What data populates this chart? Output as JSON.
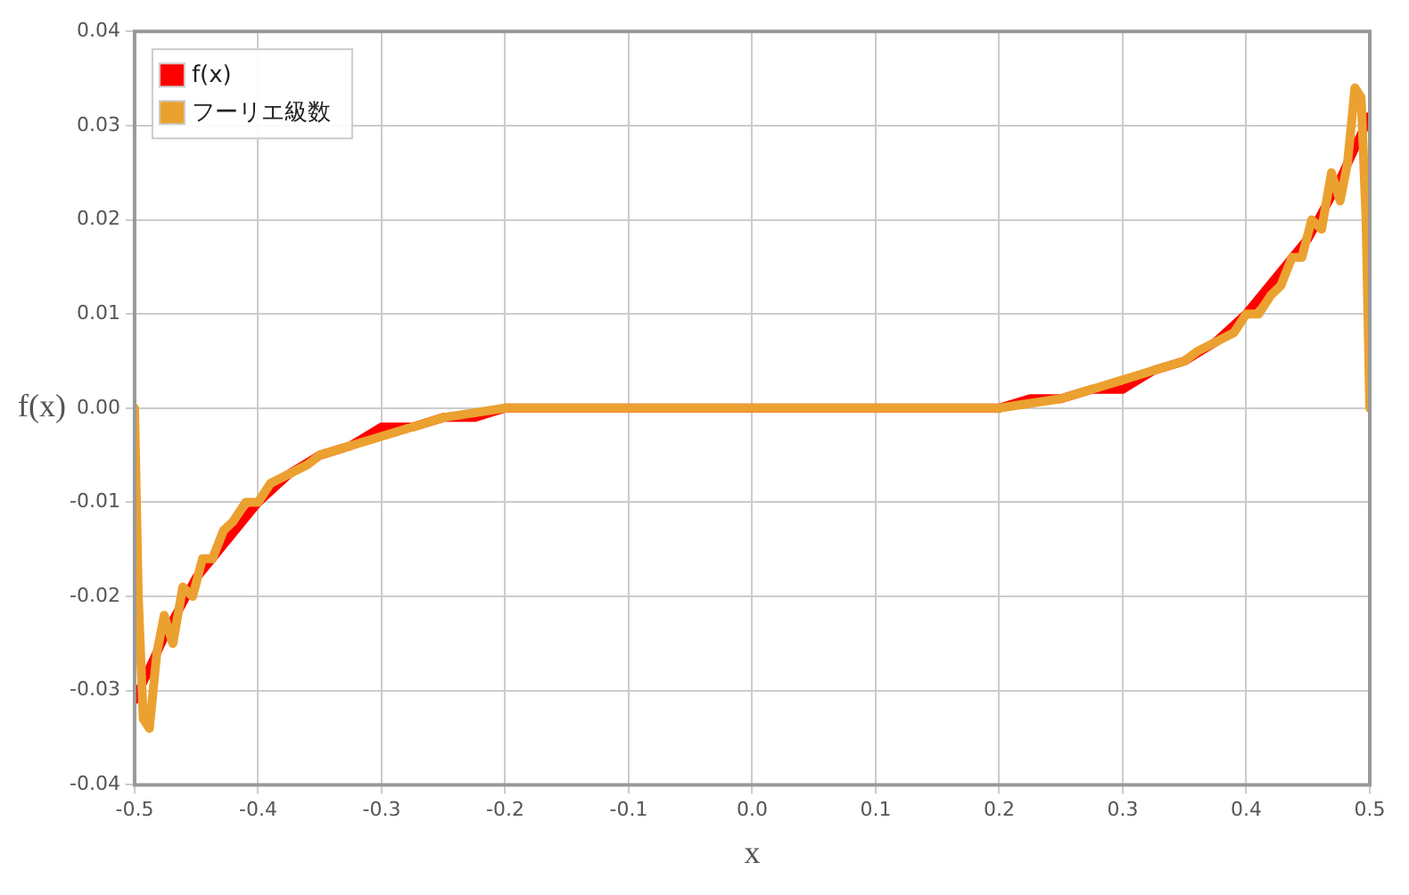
{
  "chart_data": {
    "type": "line",
    "xlabel": "x",
    "ylabel": "f(x)",
    "xlim": [
      -0.5,
      0.5
    ],
    "xticks": [
      {
        "value": -0.5,
        "label": "-0.5"
      },
      {
        "value": -0.4,
        "label": "-0.4"
      },
      {
        "value": -0.3,
        "label": "-0.3"
      },
      {
        "value": -0.2,
        "label": "-0.2"
      },
      {
        "value": -0.1,
        "label": "-0.1"
      },
      {
        "value": 0,
        "label": "0.0"
      },
      {
        "value": 0.1,
        "label": "0.1"
      },
      {
        "value": 0.2,
        "label": "0.2"
      },
      {
        "value": 0.3,
        "label": "0.3"
      },
      {
        "value": 0.4,
        "label": "0.4"
      },
      {
        "value": 0.5,
        "label": "0.5"
      }
    ],
    "ylim": [
      -0.04,
      0.04
    ],
    "yticks": [
      {
        "value": -0.04,
        "label": "-0.04"
      },
      {
        "value": -0.03,
        "label": "-0.03"
      },
      {
        "value": -0.02,
        "label": "-0.02"
      },
      {
        "value": -0.01,
        "label": "-0.01"
      },
      {
        "value": 0,
        "label": "0.00"
      },
      {
        "value": 0.01,
        "label": "0.01"
      },
      {
        "value": 0.02,
        "label": "0.02"
      },
      {
        "value": 0.03,
        "label": "0.03"
      },
      {
        "value": 0.04,
        "label": "0.04"
      }
    ],
    "grid": true,
    "legend": "top left",
    "marker": "none",
    "line_style": "solid",
    "series": [
      {
        "name": "f(x)",
        "color": "#ff0000",
        "x": [
          -0.5,
          -0.475,
          -0.45,
          -0.425,
          -0.4,
          -0.375,
          -0.35,
          -0.325,
          -0.3,
          -0.275,
          -0.25,
          -0.225,
          -0.2,
          -0.15,
          -0.1,
          0,
          0.1,
          0.15,
          0.2,
          0.225,
          0.25,
          0.275,
          0.3,
          0.325,
          0.35,
          0.375,
          0.4,
          0.425,
          0.45,
          0.475,
          0.5
        ],
        "values": [
          -0.031,
          -0.024,
          -0.018,
          -0.014,
          -0.01,
          -0.007,
          -0.005,
          -0.004,
          -0.002,
          -0.002,
          -0.001,
          -0.001,
          0,
          0,
          0,
          0,
          0,
          0,
          0,
          0.001,
          0.001,
          0.002,
          0.002,
          0.004,
          0.005,
          0.007,
          0.01,
          0.014,
          0.018,
          0.024,
          0.031
        ]
      },
      {
        "name": "フーリエ級数",
        "color": "#eba12f",
        "x": [
          -0.5,
          -0.497,
          -0.493,
          -0.488,
          -0.482,
          -0.476,
          -0.469,
          -0.461,
          -0.453,
          -0.445,
          -0.437,
          -0.428,
          -0.42,
          -0.41,
          -0.4,
          -0.39,
          -0.375,
          -0.36,
          -0.35,
          -0.325,
          -0.3,
          -0.275,
          -0.25,
          -0.2,
          -0.15,
          -0.1,
          0,
          0.1,
          0.15,
          0.2,
          0.25,
          0.275,
          0.3,
          0.325,
          0.35,
          0.36,
          0.375,
          0.39,
          0.4,
          0.41,
          0.42,
          0.428,
          0.437,
          0.445,
          0.453,
          0.461,
          0.469,
          0.476,
          0.482,
          0.488,
          0.493,
          0.497,
          0.5
        ],
        "values": [
          0,
          -0.02,
          -0.033,
          -0.034,
          -0.026,
          -0.022,
          -0.025,
          -0.019,
          -0.02,
          -0.016,
          -0.016,
          -0.013,
          -0.012,
          -0.01,
          -0.01,
          -0.008,
          -0.007,
          -0.006,
          -0.005,
          -0.004,
          -0.003,
          -0.002,
          -0.001,
          0,
          0,
          0,
          0,
          0,
          0,
          0,
          0.001,
          0.002,
          0.003,
          0.004,
          0.005,
          0.006,
          0.007,
          0.008,
          0.01,
          0.01,
          0.012,
          0.013,
          0.016,
          0.016,
          0.02,
          0.019,
          0.025,
          0.022,
          0.026,
          0.034,
          0.033,
          0.02,
          0
        ]
      }
    ]
  }
}
